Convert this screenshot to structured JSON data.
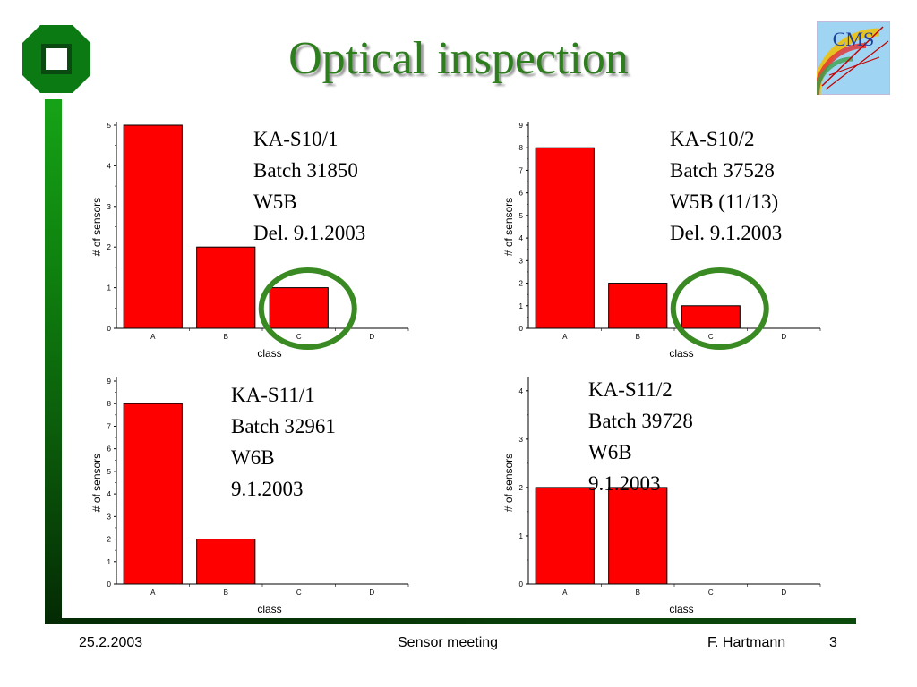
{
  "slide": {
    "title": "Optical inspection",
    "accent_color": "#2e7d1e",
    "frame_color": "#0e7e0e"
  },
  "logos": {
    "left": {
      "icon": "university-logo"
    },
    "right": {
      "icon": "cms-logo",
      "text": "CMS"
    }
  },
  "chart_data": [
    {
      "type": "bar",
      "categories": [
        "A",
        "B",
        "C",
        "D"
      ],
      "values": [
        5,
        2,
        1,
        0
      ],
      "xlabel": "class",
      "ylabel": "# of sensors",
      "ylim": [
        0,
        5
      ],
      "yticks": [
        0,
        1,
        2,
        3,
        4,
        5
      ],
      "bar_color": "#ff0000",
      "highlight": "C"
    },
    {
      "type": "bar",
      "categories": [
        "A",
        "B",
        "C",
        "D"
      ],
      "values": [
        8,
        2,
        1,
        0
      ],
      "xlabel": "class",
      "ylabel": "# of sensors",
      "ylim": [
        0,
        9
      ],
      "yticks": [
        0,
        1,
        2,
        3,
        4,
        5,
        6,
        7,
        8,
        9
      ],
      "bar_color": "#ff0000",
      "highlight": "C"
    },
    {
      "type": "bar",
      "categories": [
        "A",
        "B",
        "C",
        "D"
      ],
      "values": [
        8,
        2,
        0,
        0
      ],
      "xlabel": "class",
      "ylabel": "# of sensors",
      "ylim": [
        0,
        9
      ],
      "yticks": [
        0,
        1,
        2,
        3,
        4,
        5,
        6,
        7,
        8,
        9
      ],
      "bar_color": "#ff0000",
      "highlight": null
    },
    {
      "type": "bar",
      "categories": [
        "A",
        "B",
        "C",
        "D"
      ],
      "values": [
        2,
        2,
        0,
        0
      ],
      "xlabel": "class",
      "ylabel": "# of sensors",
      "ylim": [
        0,
        4.2
      ],
      "yticks": [
        0,
        1,
        2,
        3,
        4
      ],
      "bar_color": "#ff0000",
      "highlight": null
    }
  ],
  "panels": [
    {
      "lines": [
        "KA-S10/1",
        "Batch 31850",
        "W5B",
        "Del. 9.1.2003"
      ]
    },
    {
      "lines": [
        "KA-S10/2",
        "Batch 37528",
        "W5B (11/13)",
        "Del. 9.1.2003"
      ]
    },
    {
      "lines": [
        "KA-S11/1",
        "Batch 32961",
        "W6B",
        "9.1.2003"
      ]
    },
    {
      "lines": [
        "KA-S11/2",
        "Batch 39728",
        "W6B",
        "9.1.2003"
      ]
    }
  ],
  "footer": {
    "date": "25.2.2003",
    "meeting": "Sensor meeting",
    "author": "F. Hartmann",
    "page": "3"
  }
}
